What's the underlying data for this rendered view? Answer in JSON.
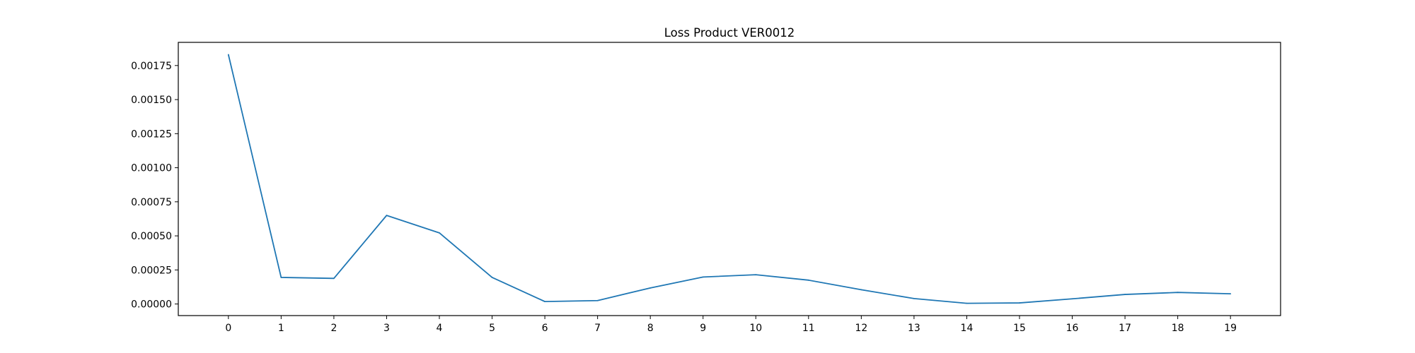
{
  "chart_data": {
    "type": "line",
    "title": "Loss Product VER0012",
    "xlabel": "",
    "ylabel": "",
    "x": [
      0,
      1,
      2,
      3,
      4,
      5,
      6,
      7,
      8,
      9,
      10,
      11,
      12,
      13,
      14,
      15,
      16,
      17,
      18,
      19
    ],
    "series": [
      {
        "name": "loss",
        "color": "#1f77b4",
        "values": [
          0.00183,
          0.000195,
          0.000188,
          0.00065,
          0.000522,
          0.000195,
          1.8e-05,
          2.5e-05,
          0.000118,
          0.000198,
          0.000215,
          0.000175,
          0.000105,
          4e-05,
          5e-06,
          8e-06,
          3.8e-05,
          7e-05,
          8.5e-05,
          7.5e-05
        ]
      }
    ],
    "xlim": [
      -0.95,
      19.95
    ],
    "ylim": [
      -8.5e-05,
      0.00192
    ],
    "xticks": [
      "0",
      "1",
      "2",
      "3",
      "4",
      "5",
      "6",
      "7",
      "8",
      "9",
      "10",
      "11",
      "12",
      "13",
      "14",
      "15",
      "16",
      "17",
      "18",
      "19"
    ],
    "yticks": [
      {
        "value": 0,
        "label": "0.00000"
      },
      {
        "value": 0.00025,
        "label": "0.00025"
      },
      {
        "value": 0.0005,
        "label": "0.00050"
      },
      {
        "value": 0.00075,
        "label": "0.00075"
      },
      {
        "value": 0.001,
        "label": "0.00100"
      },
      {
        "value": 0.00125,
        "label": "0.00125"
      },
      {
        "value": 0.0015,
        "label": "0.00150"
      },
      {
        "value": 0.00175,
        "label": "0.00175"
      }
    ],
    "grid": false,
    "legend": "none"
  }
}
